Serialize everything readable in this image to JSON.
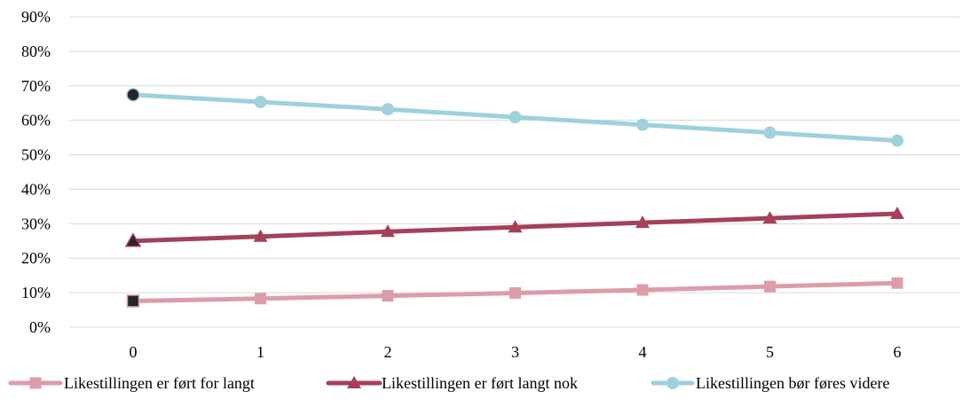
{
  "chart_data": {
    "type": "line",
    "x": [
      0,
      1,
      2,
      3,
      4,
      5,
      6
    ],
    "x_tick_labels": [
      "0",
      "1",
      "2",
      "3",
      "4",
      "5",
      "6"
    ],
    "ylim": [
      0,
      0.9
    ],
    "y_ticks": [
      0,
      0.1,
      0.2,
      0.3,
      0.4,
      0.5,
      0.6,
      0.7,
      0.8,
      0.9
    ],
    "y_tick_labels": [
      "0%",
      "10%",
      "20%",
      "30%",
      "40%",
      "50%",
      "60%",
      "70%",
      "80%",
      "90%"
    ],
    "grid": true,
    "legend_position": "bottom",
    "series": [
      {
        "name": "Likestillingen er ført for langt",
        "color": "#dc9daa",
        "marker": "square",
        "first_marker_color": "#262626",
        "values": [
          0.076,
          0.083,
          0.091,
          0.099,
          0.108,
          0.118,
          0.128
        ]
      },
      {
        "name": "Likestillingen er ført langt nok",
        "color": "#a4405a",
        "marker": "triangle",
        "first_marker_color": "#262626",
        "values": [
          0.25,
          0.263,
          0.277,
          0.29,
          0.303,
          0.316,
          0.329
        ]
      },
      {
        "name": "Likestillingen bør føres videre",
        "color": "#9ed1dc",
        "marker": "circle",
        "first_marker_color": "#262626",
        "values": [
          0.674,
          0.653,
          0.632,
          0.609,
          0.587,
          0.564,
          0.541
        ]
      }
    ]
  }
}
